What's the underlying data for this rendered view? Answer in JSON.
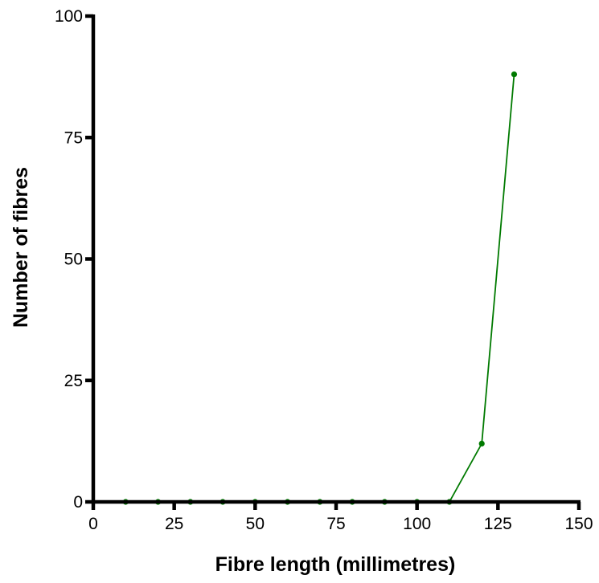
{
  "chart_data": {
    "type": "line",
    "title": "",
    "xlabel": "Fibre length (millimetres)",
    "ylabel": "Number of fibres",
    "xlim": [
      0,
      150
    ],
    "ylim": [
      0,
      100
    ],
    "x_ticks": [
      0,
      25,
      50,
      75,
      100,
      125,
      150
    ],
    "y_ticks": [
      0,
      25,
      50,
      75,
      100
    ],
    "grid": false,
    "legend": "none",
    "series": [
      {
        "color": "#007a00",
        "x": [
          10,
          20,
          30,
          40,
          50,
          60,
          70,
          80,
          90,
          100,
          110,
          120,
          130
        ],
        "y": [
          0,
          0,
          0,
          0,
          0,
          0,
          0,
          0,
          0,
          0,
          0,
          12,
          88
        ]
      }
    ]
  }
}
